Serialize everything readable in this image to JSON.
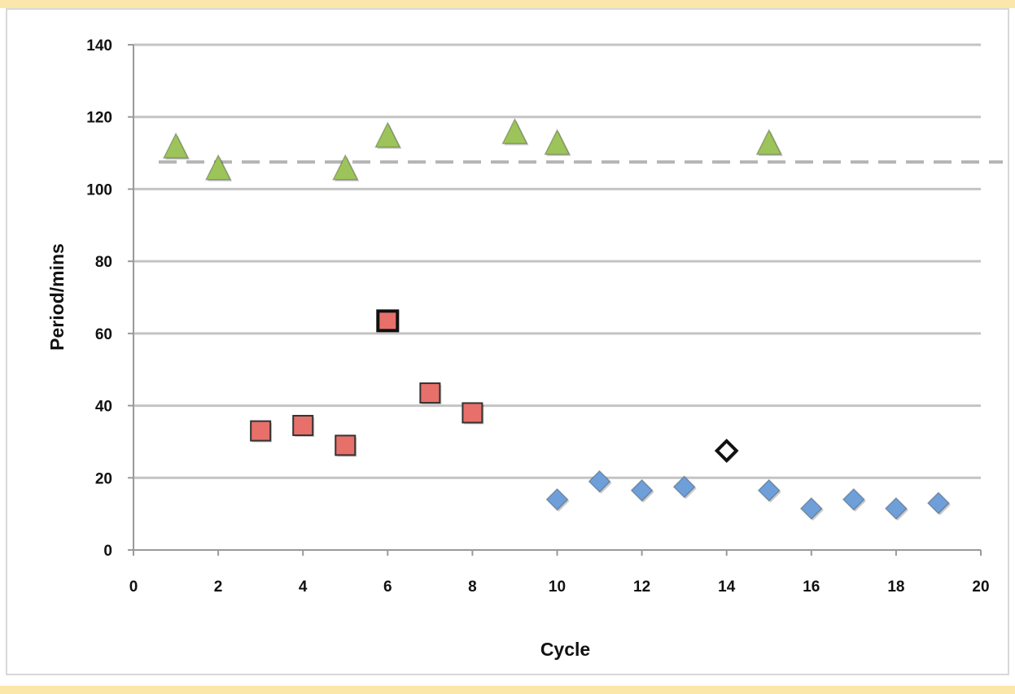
{
  "chart_data": {
    "type": "scatter",
    "title": "",
    "xlabel": "Cycle",
    "ylabel": "Period/mins",
    "xlim": [
      0,
      20
    ],
    "ylim": [
      0,
      140
    ],
    "x_ticks": [
      0,
      2,
      4,
      6,
      8,
      10,
      12,
      14,
      16,
      18,
      20
    ],
    "y_ticks": [
      0,
      20,
      40,
      60,
      80,
      100,
      120,
      140
    ],
    "grid": "horizontal",
    "legend": "none",
    "reference_line": {
      "y": 107.5,
      "style": "dashed",
      "color": "#b5b5b5"
    },
    "series": [
      {
        "marker": "triangle",
        "color": "#9cc45a",
        "points": [
          {
            "x": 1,
            "y": 112
          },
          {
            "x": 2,
            "y": 106
          },
          {
            "x": 5,
            "y": 106
          },
          {
            "x": 6,
            "y": 115
          },
          {
            "x": 9,
            "y": 116
          },
          {
            "x": 10,
            "y": 113
          },
          {
            "x": 15,
            "y": 113
          }
        ]
      },
      {
        "marker": "square",
        "color": "#e8706a",
        "points": [
          {
            "x": 3,
            "y": 33
          },
          {
            "x": 4,
            "y": 34.5
          },
          {
            "x": 5,
            "y": 29
          },
          {
            "x": 6,
            "y": 63.5,
            "highlighted": true
          },
          {
            "x": 7,
            "y": 43.5
          },
          {
            "x": 8,
            "y": 38
          }
        ]
      },
      {
        "marker": "diamond",
        "color": "#6f9fd8",
        "points": [
          {
            "x": 10,
            "y": 14
          },
          {
            "x": 11,
            "y": 19
          },
          {
            "x": 12,
            "y": 16.5
          },
          {
            "x": 13,
            "y": 17.5
          },
          {
            "x": 14,
            "y": 27.5,
            "highlighted": true
          },
          {
            "x": 15,
            "y": 16.5
          },
          {
            "x": 16,
            "y": 11.5
          },
          {
            "x": 17,
            "y": 14
          },
          {
            "x": 18,
            "y": 11.5
          },
          {
            "x": 19,
            "y": 13
          }
        ]
      }
    ]
  }
}
